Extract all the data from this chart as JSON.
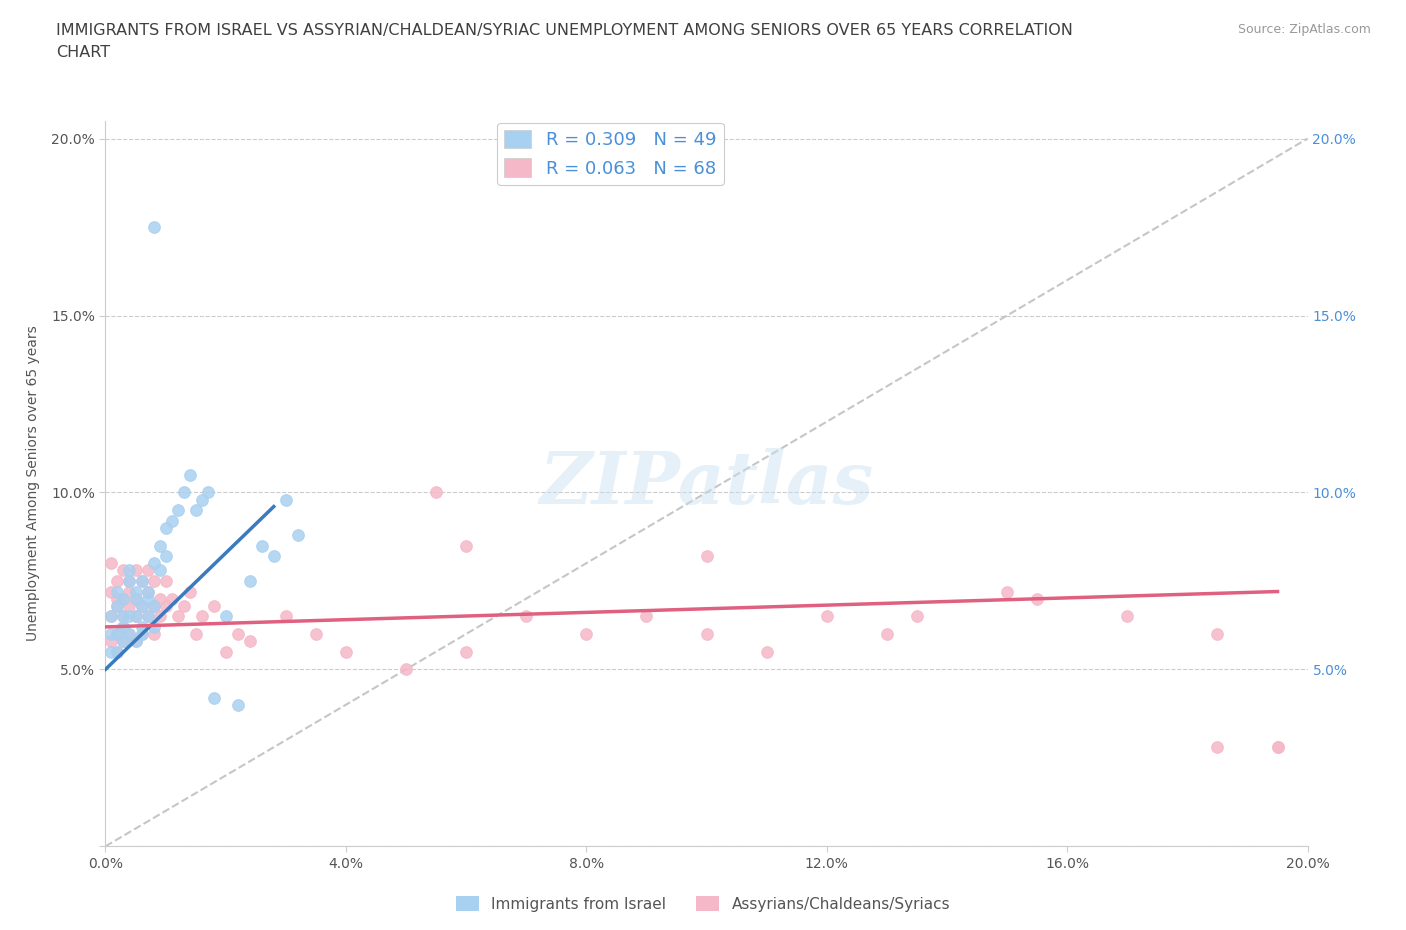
{
  "title": "IMMIGRANTS FROM ISRAEL VS ASSYRIAN/CHALDEAN/SYRIAC UNEMPLOYMENT AMONG SENIORS OVER 65 YEARS CORRELATION\nCHART",
  "source_text": "Source: ZipAtlas.com",
  "ylabel": "Unemployment Among Seniors over 65 years",
  "xlim": [
    0.0,
    0.2
  ],
  "ylim": [
    0.0,
    0.205
  ],
  "xticks": [
    0.0,
    0.04,
    0.08,
    0.12,
    0.16,
    0.2
  ],
  "yticks": [
    0.0,
    0.05,
    0.1,
    0.15,
    0.2
  ],
  "xticklabels": [
    "0.0%",
    "4.0%",
    "8.0%",
    "12.0%",
    "16.0%",
    "20.0%"
  ],
  "yticklabels": [
    "",
    "5.0%",
    "10.0%",
    "15.0%",
    "20.0%"
  ],
  "right_yticklabels": [
    "5.0%",
    "10.0%",
    "15.0%",
    "20.0%"
  ],
  "right_yticks": [
    0.05,
    0.1,
    0.15,
    0.2
  ],
  "legend_label1": "R = 0.309   N = 49",
  "legend_label2": "R = 0.063   N = 68",
  "scatter_label1": "Immigrants from Israel",
  "scatter_label2": "Assyrians/Chaldeans/Syriacs",
  "color1": "#a8d0f0",
  "color2": "#f5b8c8",
  "line1_color": "#3a7abf",
  "line2_color": "#e06080",
  "watermark": "ZIPatlas",
  "israel_x": [
    0.001,
    0.001,
    0.001,
    0.002,
    0.002,
    0.002,
    0.002,
    0.003,
    0.003,
    0.003,
    0.003,
    0.004,
    0.004,
    0.004,
    0.004,
    0.005,
    0.005,
    0.005,
    0.005,
    0.006,
    0.006,
    0.006,
    0.006,
    0.007,
    0.007,
    0.007,
    0.008,
    0.008,
    0.008,
    0.009,
    0.009,
    0.01,
    0.01,
    0.011,
    0.012,
    0.013,
    0.014,
    0.015,
    0.016,
    0.017,
    0.018,
    0.02,
    0.022,
    0.024,
    0.026,
    0.028,
    0.03,
    0.032,
    0.008
  ],
  "israel_y": [
    0.06,
    0.055,
    0.065,
    0.06,
    0.068,
    0.055,
    0.072,
    0.065,
    0.058,
    0.07,
    0.062,
    0.065,
    0.075,
    0.06,
    0.078,
    0.065,
    0.072,
    0.058,
    0.07,
    0.068,
    0.062,
    0.075,
    0.06,
    0.07,
    0.065,
    0.072,
    0.068,
    0.08,
    0.062,
    0.078,
    0.085,
    0.082,
    0.09,
    0.092,
    0.095,
    0.1,
    0.105,
    0.095,
    0.098,
    0.1,
    0.042,
    0.065,
    0.04,
    0.075,
    0.085,
    0.082,
    0.098,
    0.088,
    0.175
  ],
  "assyrian_x": [
    0.001,
    0.001,
    0.001,
    0.001,
    0.002,
    0.002,
    0.002,
    0.002,
    0.002,
    0.003,
    0.003,
    0.003,
    0.003,
    0.003,
    0.004,
    0.004,
    0.004,
    0.004,
    0.005,
    0.005,
    0.005,
    0.005,
    0.006,
    0.006,
    0.006,
    0.007,
    0.007,
    0.007,
    0.008,
    0.008,
    0.008,
    0.009,
    0.009,
    0.01,
    0.01,
    0.011,
    0.012,
    0.013,
    0.014,
    0.015,
    0.016,
    0.018,
    0.02,
    0.022,
    0.024,
    0.03,
    0.035,
    0.04,
    0.05,
    0.06,
    0.07,
    0.08,
    0.09,
    0.1,
    0.11,
    0.12,
    0.13,
    0.135,
    0.15,
    0.17,
    0.185,
    0.195,
    0.055,
    0.06,
    0.1,
    0.155,
    0.185,
    0.195
  ],
  "assyrian_y": [
    0.065,
    0.058,
    0.072,
    0.08,
    0.06,
    0.068,
    0.075,
    0.055,
    0.07,
    0.062,
    0.07,
    0.078,
    0.058,
    0.065,
    0.068,
    0.075,
    0.06,
    0.072,
    0.065,
    0.07,
    0.078,
    0.058,
    0.068,
    0.075,
    0.06,
    0.065,
    0.072,
    0.078,
    0.06,
    0.068,
    0.075,
    0.065,
    0.07,
    0.068,
    0.075,
    0.07,
    0.065,
    0.068,
    0.072,
    0.06,
    0.065,
    0.068,
    0.055,
    0.06,
    0.058,
    0.065,
    0.06,
    0.055,
    0.05,
    0.055,
    0.065,
    0.06,
    0.065,
    0.06,
    0.055,
    0.065,
    0.06,
    0.065,
    0.072,
    0.065,
    0.06,
    0.028,
    0.1,
    0.085,
    0.082,
    0.07,
    0.028,
    0.028
  ],
  "background_color": "#ffffff",
  "grid_color": "#e8e8e8",
  "title_fontsize": 11.5,
  "axis_fontsize": 10,
  "tick_fontsize": 10
}
